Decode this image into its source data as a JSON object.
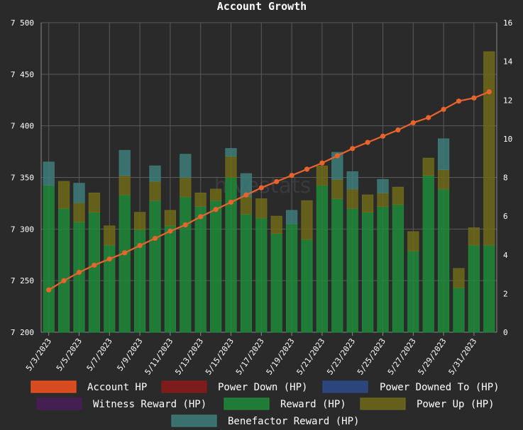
{
  "chart_data": {
    "type": "bar",
    "title": "Account Growth",
    "watermark": "hivestats",
    "x": [
      "5/3/2023",
      "5/4/2023",
      "5/5/2023",
      "5/6/2023",
      "5/7/2023",
      "5/8/2023",
      "5/9/2023",
      "5/10/2023",
      "5/11/2023",
      "5/12/2023",
      "5/13/2023",
      "5/14/2023",
      "5/15/2023",
      "5/16/2023",
      "5/17/2023",
      "5/18/2023",
      "5/19/2023",
      "5/20/2023",
      "5/21/2023",
      "5/22/2023",
      "5/23/2023",
      "5/24/2023",
      "5/25/2023",
      "5/26/2023",
      "5/27/2023",
      "5/28/2023",
      "5/29/2023",
      "5/30/2023",
      "5/31/2023",
      "6/1/2023"
    ],
    "x_tick_labels": [
      "5/3/2023",
      "5/5/2023",
      "5/7/2023",
      "5/9/2023",
      "5/11/2023",
      "5/13/2023",
      "5/15/2023",
      "5/17/2023",
      "5/19/2023",
      "5/21/2023",
      "5/23/2023",
      "5/25/2023",
      "5/27/2023",
      "5/29/2023",
      "5/31/2023"
    ],
    "y_left": {
      "min": 7200,
      "max": 7500,
      "ticks": [
        "7 200",
        "7 250",
        "7 300",
        "7 350",
        "7 400",
        "7 450",
        "7 500"
      ]
    },
    "y_right": {
      "min": 0,
      "max": 16,
      "ticks": [
        "0",
        "2",
        "4",
        "6",
        "8",
        "10",
        "12",
        "14",
        "16"
      ]
    },
    "grid": true,
    "legend_position": "bottom",
    "legend": [
      {
        "label": "Account HP",
        "color": "#f4511e"
      },
      {
        "label": "Power Down (HP)",
        "color": "#8b1a1a"
      },
      {
        "label": "Power Downed To (HP)",
        "color": "#2d4a8a"
      },
      {
        "label": "Witness Reward (HP)",
        "color": "#4a1c5a"
      },
      {
        "label": "Reward (HP)",
        "color": "#1e8a3a"
      },
      {
        "label": "Power Up (HP)",
        "color": "#6e6a1a"
      },
      {
        "label": "Benefactor Reward (HP)",
        "color": "#3d7e7a"
      }
    ],
    "series": [
      {
        "name": "Account HP",
        "axis": "left",
        "type": "line",
        "color": "#e8642c",
        "values": [
          7241,
          7250,
          7258,
          7265,
          7271,
          7277,
          7284,
          7291,
          7298,
          7304,
          7312,
          7319,
          7326,
          7333,
          7340,
          7346,
          7352,
          7358,
          7364,
          7371,
          7378,
          7384,
          7390,
          7396,
          7403,
          7408,
          7416,
          7424,
          7427,
          7433
        ]
      },
      {
        "name": "Reward (HP)",
        "axis": "right",
        "type": "bar",
        "color": "#1e8a3a",
        "values": [
          7.6,
          6.4,
          5.7,
          6.2,
          4.5,
          7.1,
          5.3,
          6.8,
          5.5,
          7.0,
          6.5,
          6.8,
          8.0,
          6.1,
          5.9,
          5.1,
          5.6,
          4.8,
          7.6,
          6.9,
          6.4,
          6.2,
          6.5,
          6.6,
          4.2,
          8.1,
          7.4,
          2.3,
          4.5,
          4.5
        ]
      },
      {
        "name": "Power Up (HP)",
        "axis": "right",
        "type": "bar",
        "color": "#6e6a1a",
        "values": [
          0,
          1.4,
          1.0,
          1.0,
          1.0,
          1.0,
          0.9,
          1.0,
          0.8,
          1.0,
          0.7,
          0.6,
          1.1,
          0.9,
          1.0,
          0.9,
          0,
          2.0,
          1.0,
          1.0,
          1.0,
          0.9,
          0.7,
          0.9,
          1.0,
          0.9,
          1.0,
          1.0,
          0.9,
          10.0
        ]
      },
      {
        "name": "Benefactor Reward (HP)",
        "axis": "right",
        "type": "bar",
        "color": "#3d7e7a",
        "values": [
          1.2,
          0,
          1.0,
          0,
          0,
          1.3,
          0,
          0.8,
          0,
          1.2,
          0,
          0,
          0.4,
          1.2,
          0,
          0,
          0.7,
          0,
          0,
          1.4,
          0.9,
          0,
          0.7,
          0,
          0,
          0,
          1.6,
          0,
          0,
          0
        ]
      }
    ]
  }
}
